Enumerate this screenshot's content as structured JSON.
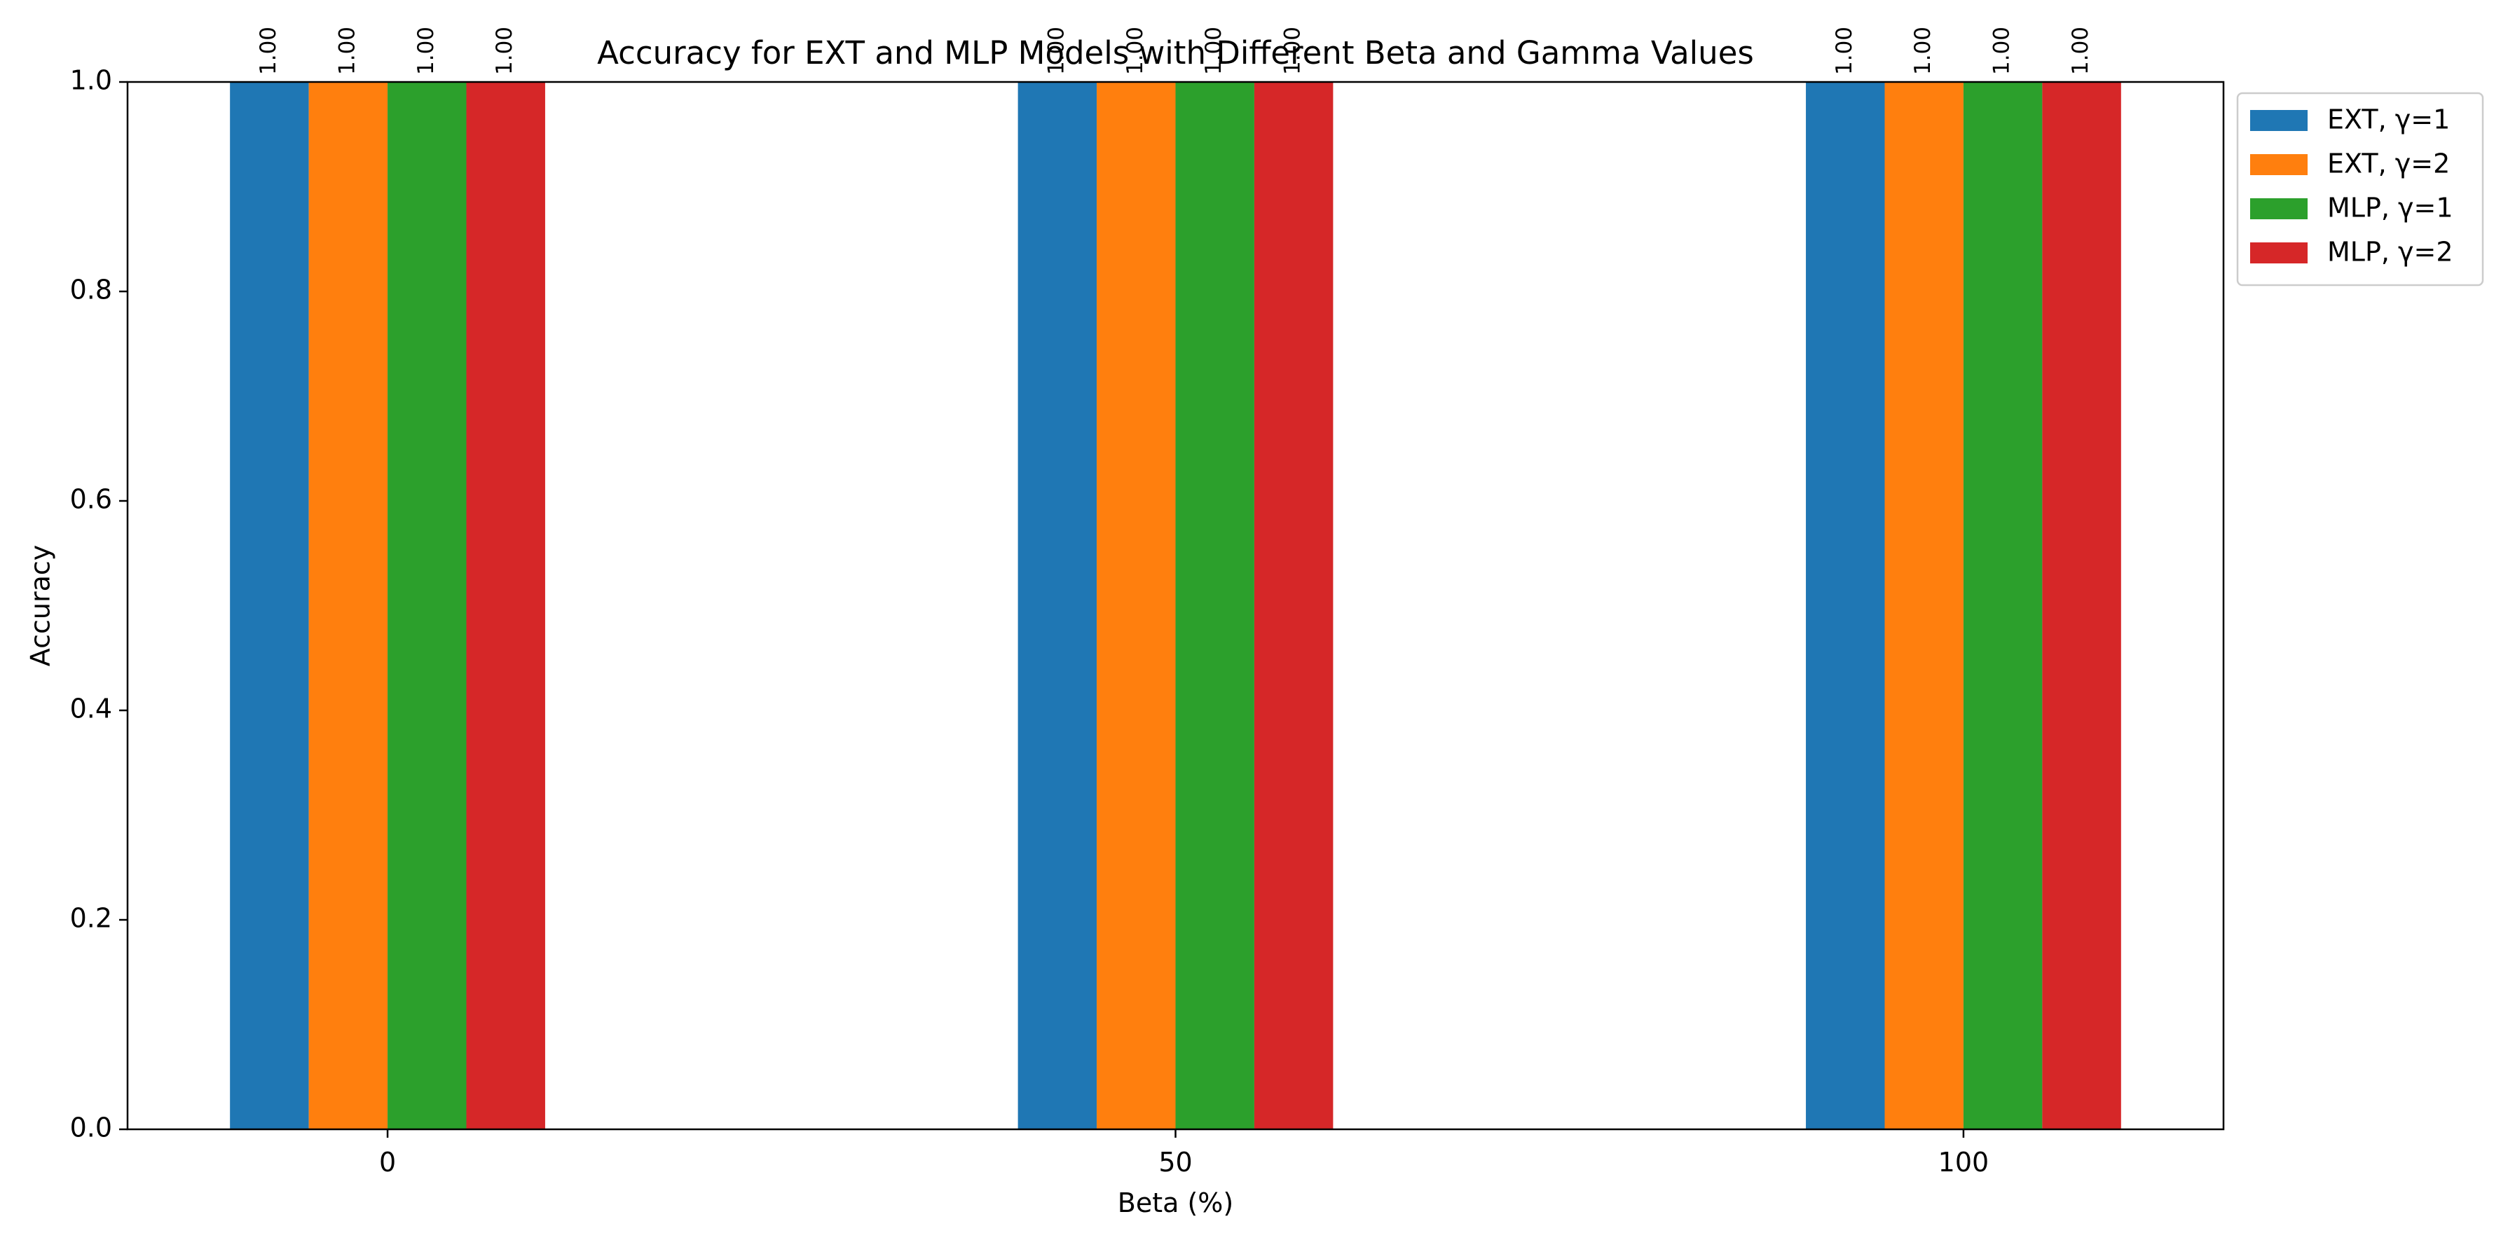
{
  "chart_data": {
    "type": "bar",
    "title": "Accuracy for EXT and MLP Models with Different Beta and Gamma Values",
    "xlabel": "Beta (%)",
    "ylabel": "Accuracy",
    "categories": [
      "0",
      "50",
      "100"
    ],
    "ylim": [
      0,
      1
    ],
    "yticks": [
      "0.0",
      "0.2",
      "0.4",
      "0.6",
      "0.8",
      "1.0"
    ],
    "grid": false,
    "legend_position": "outside-top-right",
    "series": [
      {
        "name": "EXT, γ=1",
        "color": "#1f77b4",
        "values": [
          1.0,
          1.0,
          1.0
        ],
        "labels": [
          "1.00",
          "1.00",
          "1.00"
        ]
      },
      {
        "name": "EXT, γ=2",
        "color": "#ff7f0e",
        "values": [
          1.0,
          1.0,
          1.0
        ],
        "labels": [
          "1.00",
          "1.00",
          "1.00"
        ]
      },
      {
        "name": "MLP, γ=1",
        "color": "#2ca02c",
        "values": [
          1.0,
          1.0,
          1.0
        ],
        "labels": [
          "1.00",
          "1.00",
          "1.00"
        ]
      },
      {
        "name": "MLP, γ=2",
        "color": "#d62728",
        "values": [
          1.0,
          1.0,
          1.0
        ],
        "labels": [
          "1.00",
          "1.00",
          "1.00"
        ]
      }
    ]
  }
}
